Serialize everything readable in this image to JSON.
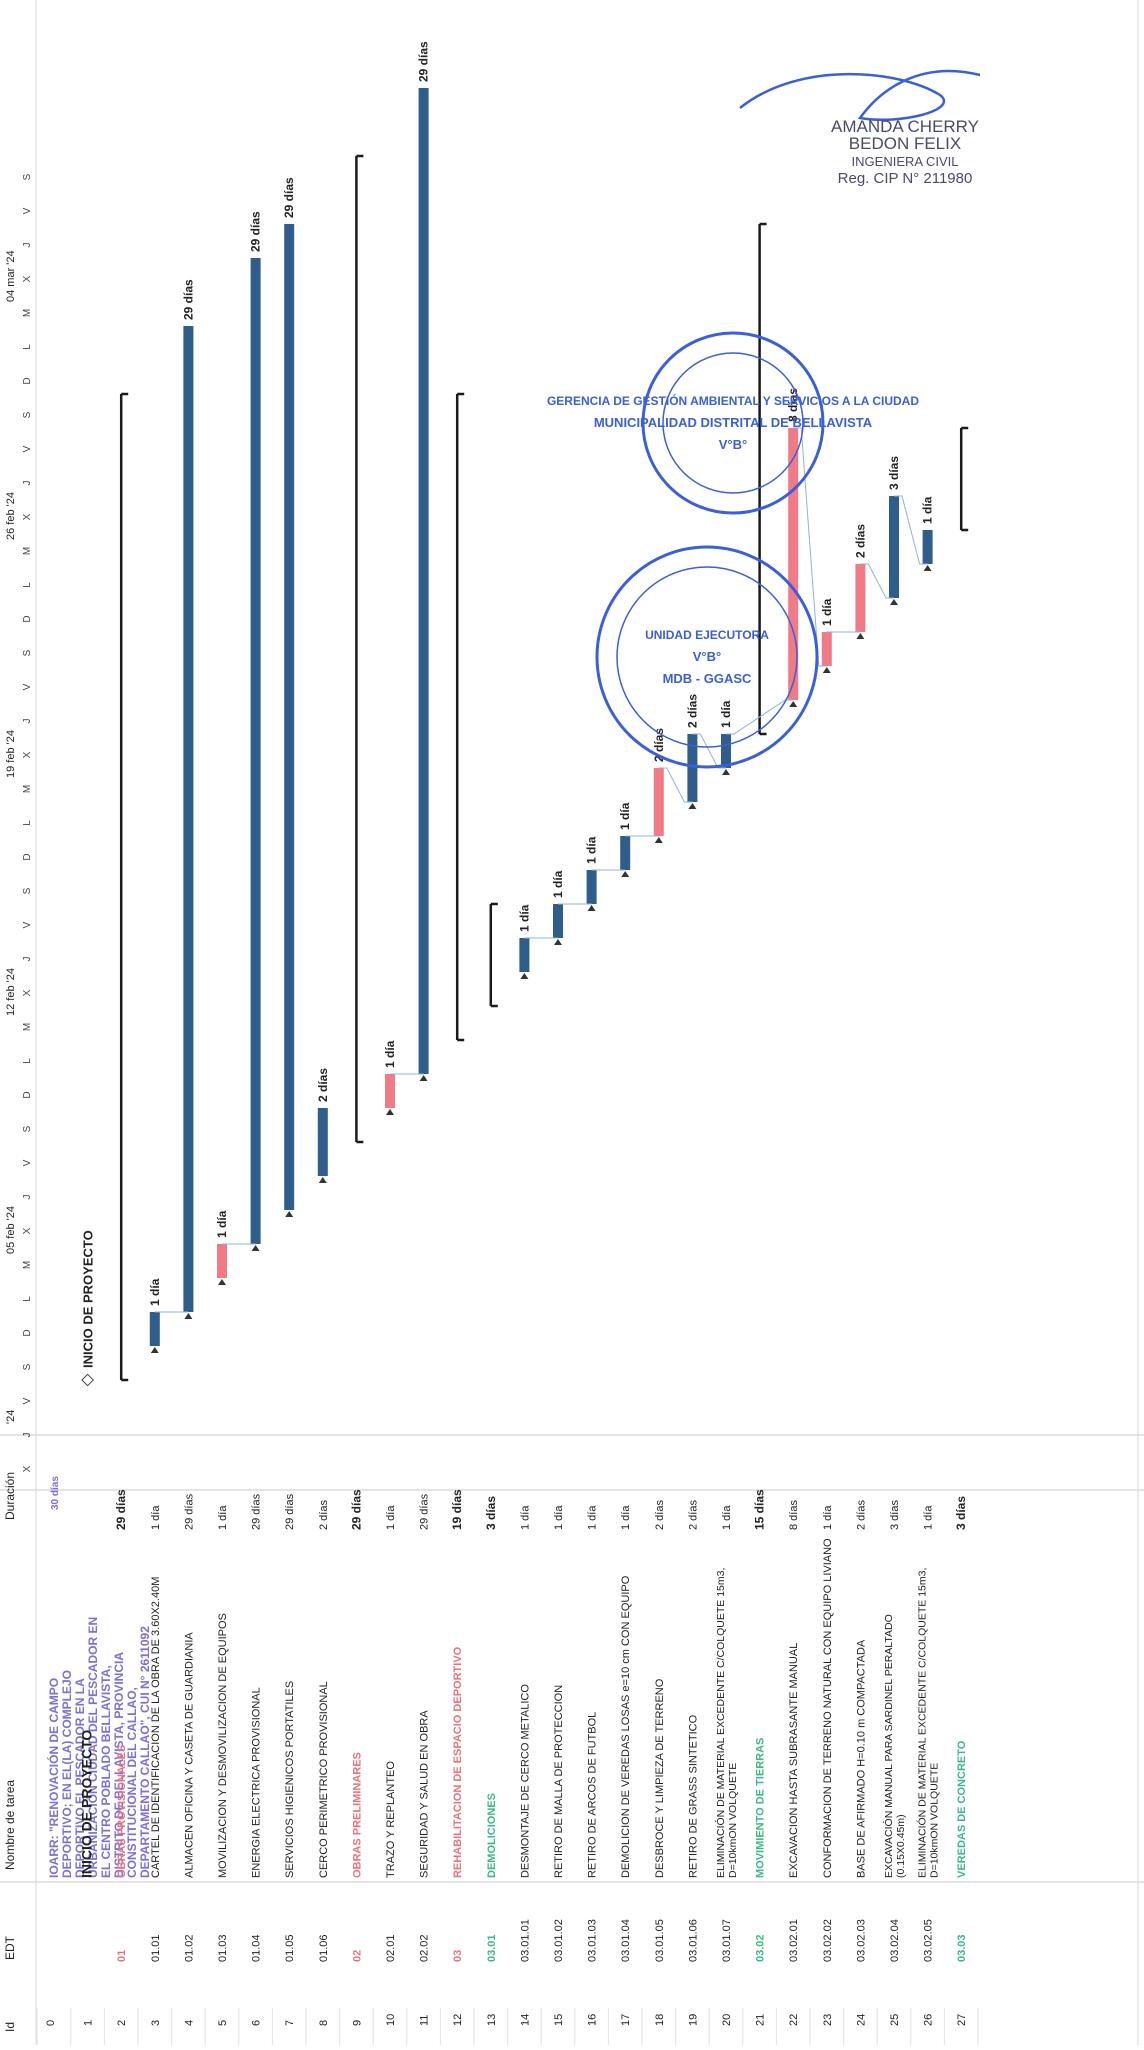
{
  "header": {
    "id_label": "Id",
    "edt_label": "EDT",
    "name_label": "Nombre de tarea",
    "duration_label": "Duración"
  },
  "timeline": {
    "weeks": [
      "'24",
      "05 feb '24",
      "12 feb '24",
      "19 feb '24",
      "26 feb '24",
      "04 mar '24"
    ],
    "day_letters": [
      "X",
      "J",
      "V",
      "S",
      "D",
      "L",
      "M",
      "X",
      "J",
      "V",
      "S",
      "D",
      "L",
      "M",
      "X",
      "J",
      "V",
      "S",
      "D",
      "L",
      "M",
      "X",
      "J",
      "V",
      "S",
      "D",
      "L",
      "M",
      "X",
      "J",
      "V",
      "S",
      "D",
      "L",
      "M",
      "X",
      "J",
      "V",
      "S"
    ]
  },
  "project_row": {
    "id": "0",
    "name": "IOARR: \"RENOVACIÓN DE CAMPO DEPORTIVO; EN EL(LA) COMPLEJO DEPORTIVO EL PESCADOR EN LA URBANIZACIÓN CIUDAD DEL PESCADOR EN EL CENTRO POBLADO BELLAVISTA, DISTRITO DE BELLAVISTA, PROVINCIA CONSTITUCIONAL DEL CALLAO, DEPARTAMENTO CALLAO\", CUI N° 2611092",
    "duration": "30 días"
  },
  "colors": {
    "task_blue": "#2f5d8c",
    "critical_red": "#f07b86",
    "summary_black": "#1a1a1a",
    "heading_red": "#e8737e",
    "heading_green": "#3db889",
    "title_purple": "#7b6fd8",
    "stamp_blue": "#3a5fd9",
    "link_blue": "#8fb3d9"
  },
  "chart_data": {
    "type": "gantt",
    "time_unit": "days",
    "tasks": [
      {
        "id": "1",
        "edt": "",
        "name": "INICIO DE PROYECTO",
        "duration": "",
        "kind": "milestone",
        "start": 0,
        "length": 0,
        "bar_label": "INICIO DE PROYECTO"
      },
      {
        "id": "2",
        "edt": "01",
        "name": "OBRAS PROVISIONALES",
        "duration": "29 días",
        "kind": "summary",
        "start": 0,
        "length": 29
      },
      {
        "id": "3",
        "edt": "01.01",
        "name": "CARTEL DE IDENTIFICACION DE LA OBRA DE 3.60X2.40M",
        "duration": "1 día",
        "kind": "task",
        "start": 1,
        "length": 1,
        "bar_label": "1 día"
      },
      {
        "id": "4",
        "edt": "01.02",
        "name": "ALMACEN OFICINA Y CASETA DE GUARDIANIA",
        "duration": "29 días",
        "kind": "task",
        "start": 2,
        "length": 29,
        "bar_label": "29 días"
      },
      {
        "id": "5",
        "edt": "01.03",
        "name": "MOVILIZACION Y DESMOVILIZACION DE EQUIPOS",
        "duration": "1 día",
        "kind": "critical",
        "start": 3,
        "length": 1,
        "bar_label": "1 día"
      },
      {
        "id": "6",
        "edt": "01.04",
        "name": "ENERGIA ELECTRICA PROVISIONAL",
        "duration": "29 días",
        "kind": "task",
        "start": 4,
        "length": 29,
        "bar_label": "29 días"
      },
      {
        "id": "7",
        "edt": "01.05",
        "name": "SERVICIOS HIGIENICOS PORTATILES",
        "duration": "29 días",
        "kind": "task",
        "start": 5,
        "length": 29,
        "bar_label": "29 días"
      },
      {
        "id": "8",
        "edt": "01.06",
        "name": "CERCO PERIMETRICO PROVISIONAL",
        "duration": "2 días",
        "kind": "task",
        "start": 6,
        "length": 2,
        "bar_label": "2 días"
      },
      {
        "id": "9",
        "edt": "02",
        "name": "OBRAS PRELIMINARES",
        "duration": "29 días",
        "kind": "summary",
        "start": 7,
        "length": 29
      },
      {
        "id": "10",
        "edt": "02.01",
        "name": "TRAZO Y REPLANTEO",
        "duration": "1 día",
        "kind": "critical",
        "start": 8,
        "length": 1,
        "bar_label": "1 día"
      },
      {
        "id": "11",
        "edt": "02.02",
        "name": "SEGURIDAD Y SALUD EN OBRA",
        "duration": "29 días",
        "kind": "task",
        "start": 9,
        "length": 29,
        "bar_label": "29 días"
      },
      {
        "id": "12",
        "edt": "03",
        "name": "REHABILITACION DE ESPACIO DEPORTIVO",
        "duration": "19 días",
        "kind": "summary",
        "start": 10,
        "length": 19
      },
      {
        "id": "13",
        "edt": "03.01",
        "name": "DEMOLICIONES",
        "duration": "3 días",
        "kind": "summary",
        "start": 11,
        "length": 3
      },
      {
        "id": "14",
        "edt": "03.01.01",
        "name": "DESMONTAJE DE CERCO METALICO",
        "duration": "1 día",
        "kind": "task",
        "start": 12,
        "length": 1,
        "bar_label": "1 día"
      },
      {
        "id": "15",
        "edt": "03.01.02",
        "name": "RETIRO DE MALLA DE PROTECCION",
        "duration": "1 día",
        "kind": "task",
        "start": 13,
        "length": 1,
        "bar_label": "1 día"
      },
      {
        "id": "16",
        "edt": "03.01.03",
        "name": "RETIRO DE ARCOS DE FUTBOL",
        "duration": "1 día",
        "kind": "task",
        "start": 14,
        "length": 1,
        "bar_label": "1 día"
      },
      {
        "id": "17",
        "edt": "03.01.04",
        "name": "DEMOLICION DE VEREDAS LOSAS e=10 cm CON EQUIPO",
        "duration": "1 día",
        "kind": "task",
        "start": 15,
        "length": 1,
        "bar_label": "1 día"
      },
      {
        "id": "18",
        "edt": "03.01.05",
        "name": "DESBROCE Y LIMPIEZA DE TERRENO",
        "duration": "2 días",
        "kind": "critical",
        "start": 16,
        "length": 2,
        "bar_label": "2 días"
      },
      {
        "id": "19",
        "edt": "03.01.06",
        "name": "RETIRO DE GRASS SINTETICO",
        "duration": "2 días",
        "kind": "task",
        "start": 17,
        "length": 2,
        "bar_label": "2 días"
      },
      {
        "id": "20",
        "edt": "03.01.07",
        "name": "ELIMINACIÓN DE MATERIAL EXCEDENTE C/COLQUETE 15m3, D=10kmON VOLQUETE",
        "duration": "1 día",
        "kind": "task",
        "start": 18,
        "length": 1,
        "bar_label": "1 día"
      },
      {
        "id": "21",
        "edt": "03.02",
        "name": "MOVIMIENTO DE TIERRAS",
        "duration": "15 días",
        "kind": "summary",
        "start": 19,
        "length": 15
      },
      {
        "id": "22",
        "edt": "03.02.01",
        "name": "EXCAVACION HASTA SUBRASANTE MANUAL",
        "duration": "8 días",
        "kind": "critical",
        "start": 20,
        "length": 8,
        "bar_label": "8 días"
      },
      {
        "id": "23",
        "edt": "03.02.02",
        "name": "CONFORMACION DE TERRENO NATURAL CON EQUIPO LIVIANO",
        "duration": "1 día",
        "kind": "critical",
        "start": 21,
        "length": 1,
        "bar_label": "1 día"
      },
      {
        "id": "24",
        "edt": "03.02.03",
        "name": "BASE DE AFIRMADO H=0.10 m COMPACTADA",
        "duration": "2 días",
        "kind": "critical",
        "start": 22,
        "length": 2,
        "bar_label": "2 días"
      },
      {
        "id": "25",
        "edt": "03.02.04",
        "name": "EXCAVACIÓN MANUAL PARA SARDINEL PERALTADO (0.15X0.45m)",
        "duration": "3 días",
        "kind": "task",
        "start": 23,
        "length": 3,
        "bar_label": "3 días"
      },
      {
        "id": "26",
        "edt": "03.02.05",
        "name": "ELIMINACIÓN DE MATERIAL EXCEDENTE C/COLQUETE 15m3, D=10kmON VOLQUETE",
        "duration": "1 día",
        "kind": "task",
        "start": 24,
        "length": 1,
        "bar_label": "1 día"
      },
      {
        "id": "27",
        "edt": "03.03",
        "name": "VEREDAS DE CONCRETO",
        "duration": "3 días",
        "kind": "summary",
        "start": 25,
        "length": 3
      }
    ]
  },
  "stamps": {
    "signature_text": [
      "AMANDA CHERRY",
      "BEDON FELIX",
      "INGENIERA CIVIL",
      "Reg. CIP N° 211980"
    ],
    "gerencia_stamp": [
      "GERENCIA DE GESTIÓN AMBIENTAL Y SERVICIOS A LA CIUDAD",
      "MUNICIPALIDAD DISTRITAL DE BELLAVISTA",
      "V°B°"
    ],
    "unidad_stamp": [
      "UNIDAD EJECUTORA",
      "V°B°",
      "MDB - GGASC"
    ]
  }
}
